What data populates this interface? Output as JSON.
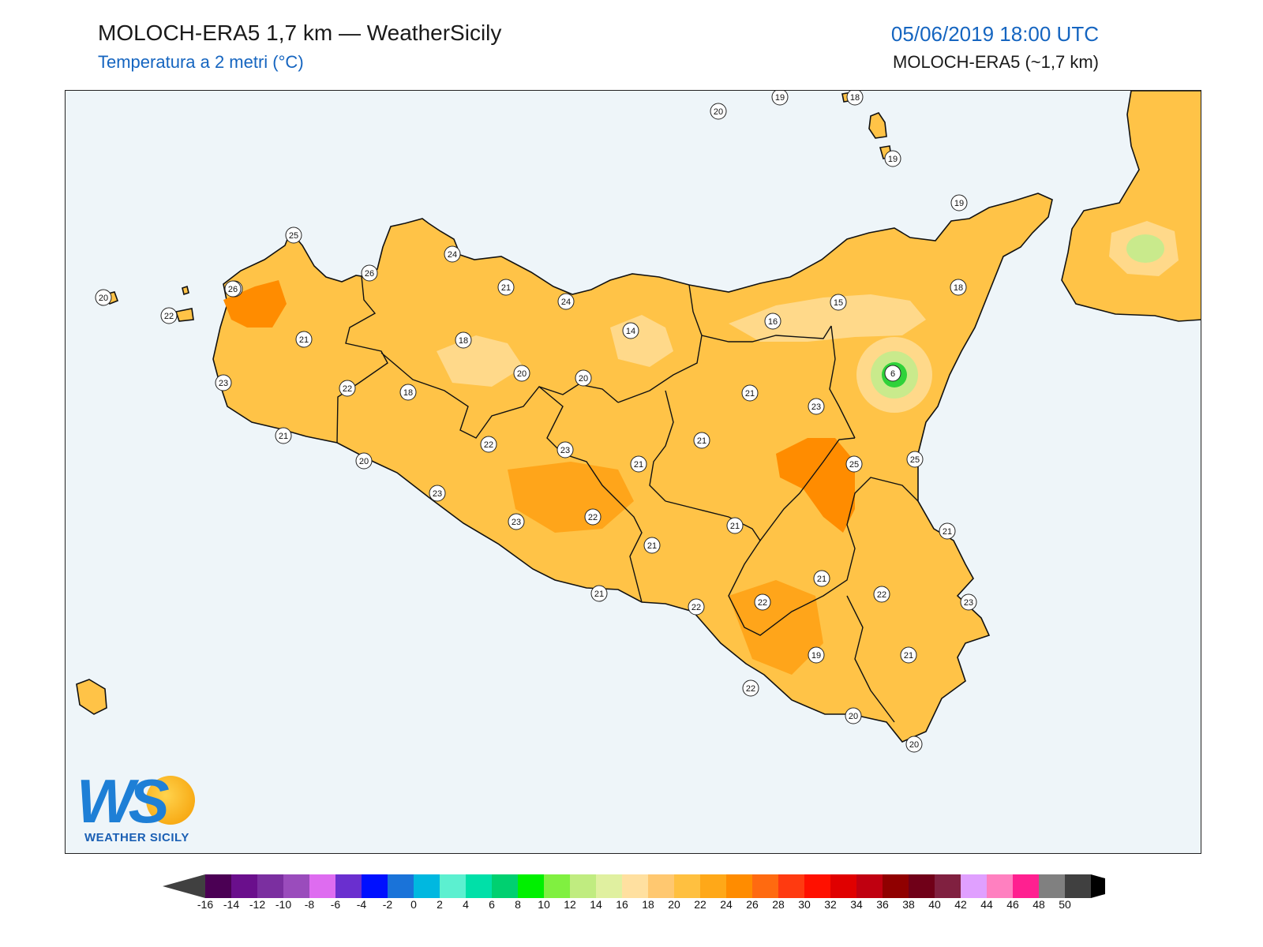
{
  "header": {
    "title": "MOLOCH-ERA5 1,7 km — WeatherSicily",
    "subtitle": "Temperatura a 2 metri (°C)",
    "datetime": "05/06/2019 18:00 UTC",
    "model": "MOLOCH-ERA5 (~1,7 km)"
  },
  "logo": {
    "letters": "WS",
    "text": "WEATHER SICILY"
  },
  "map": {
    "colors": {
      "sea": "#eef5f9",
      "land": "#ffc347",
      "warm": "#ffa51a",
      "hot": "#ff8c00",
      "cool": "#ffd98a",
      "cold": "#c9ea8c",
      "coldest": "#2fd23a",
      "border": "#111111"
    },
    "station_values": [
      "20",
      "19",
      "18",
      "19",
      "19",
      "25",
      "24",
      "26",
      "21",
      "21",
      "24",
      "22",
      "20",
      "26",
      "21",
      "18",
      "20",
      "20",
      "14",
      "16",
      "15",
      "18",
      "23",
      "22",
      "18",
      "6",
      "21",
      "23",
      "21",
      "20",
      "21",
      "22",
      "23",
      "21",
      "25",
      "25",
      "23",
      "23",
      "22",
      "21",
      "21",
      "21",
      "22",
      "21",
      "22",
      "22",
      "23",
      "21",
      "19",
      "22",
      "21",
      "20",
      "20"
    ]
  },
  "colorbar": {
    "ticks": [
      "-16",
      "-14",
      "-12",
      "-10",
      "-8",
      "-6",
      "-4",
      "-2",
      "0",
      "2",
      "4",
      "6",
      "8",
      "10",
      "12",
      "14",
      "16",
      "18",
      "20",
      "22",
      "24",
      "26",
      "28",
      "30",
      "32",
      "34",
      "36",
      "38",
      "40",
      "42",
      "44",
      "46",
      "48",
      "50"
    ],
    "colors": [
      "#4b0054",
      "#6a0f8c",
      "#7b2fa0",
      "#9a4cbc",
      "#de6cf0",
      "#6a2fcf",
      "#0010ff",
      "#1a73d9",
      "#00b8e0",
      "#5cf0d0",
      "#00e0a8",
      "#00d070",
      "#00f000",
      "#80f040",
      "#c0ec80",
      "#e0f0a0",
      "#ffe0a0",
      "#ffc870",
      "#ffc040",
      "#ffa818",
      "#ff8c00",
      "#ff6a10",
      "#ff3a10",
      "#ff1000",
      "#e00000",
      "#c00010",
      "#900000",
      "#700018",
      "#802040",
      "#e0a0ff",
      "#ff80c0",
      "#ff2090",
      "#808080",
      "#404040"
    ],
    "under_color": "#404040",
    "over_color": "#000000"
  }
}
